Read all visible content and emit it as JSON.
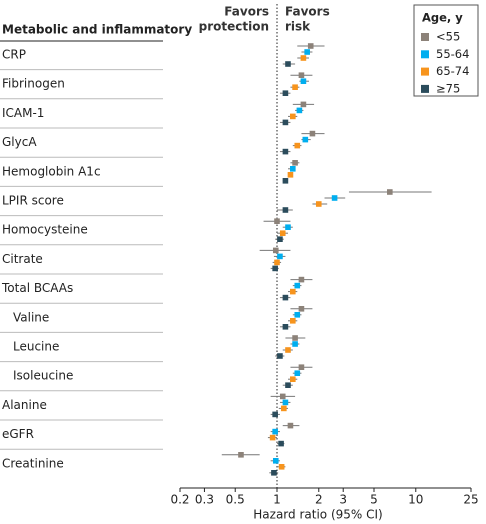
{
  "chart_data": {
    "type": "forest",
    "header": "Metabolic and inflammatory",
    "x_label": "Hazard ratio (95% CI)",
    "left_annotation": [
      "Favors",
      "protection"
    ],
    "right_annotation": [
      "Favors",
      "risk"
    ],
    "legend_title": "Age, y",
    "legend_position": "top-right",
    "xscale": "log",
    "xlim": [
      0.2,
      25
    ],
    "xticks": [
      0.2,
      0.3,
      0.5,
      1,
      2,
      3,
      5,
      10,
      25
    ],
    "reference": 1,
    "categories": [
      "CRP",
      "Fibrinogen",
      "ICAM-1",
      "GlycA",
      "Hemoglobin A1c",
      "LPIR score",
      "Homocysteine",
      "Citrate",
      "Total BCAAs",
      "Valine",
      "Leucine",
      "Isoleucine",
      "Alanine",
      "eGFR",
      "Creatinine"
    ],
    "indented": [
      9,
      10,
      11
    ],
    "series": [
      {
        "name": "<55",
        "color": "#8c8279",
        "values": [
          1.75,
          1.5,
          1.55,
          1.8,
          1.35,
          6.5,
          1.0,
          0.98,
          1.5,
          1.5,
          1.35,
          1.5,
          1.1,
          1.25,
          0.55
        ],
        "lower": [
          1.4,
          1.25,
          1.3,
          1.5,
          1.25,
          3.3,
          0.8,
          0.75,
          1.25,
          1.25,
          1.15,
          1.25,
          0.9,
          1.1,
          0.4
        ],
        "upper": [
          2.2,
          1.8,
          1.85,
          2.2,
          1.45,
          13,
          1.25,
          1.25,
          1.8,
          1.8,
          1.6,
          1.8,
          1.35,
          1.45,
          0.75
        ]
      },
      {
        "name": "55-64",
        "color": "#00aeef",
        "values": [
          1.65,
          1.55,
          1.45,
          1.6,
          1.3,
          2.6,
          1.2,
          1.05,
          1.4,
          1.4,
          1.35,
          1.4,
          1.15,
          0.97,
          0.98
        ],
        "lower": [
          1.5,
          1.45,
          1.35,
          1.5,
          1.2,
          2.2,
          1.1,
          0.95,
          1.3,
          1.3,
          1.25,
          1.3,
          1.05,
          0.9,
          0.9
        ],
        "upper": [
          1.8,
          1.7,
          1.55,
          1.75,
          1.35,
          3.1,
          1.3,
          1.15,
          1.5,
          1.5,
          1.45,
          1.5,
          1.25,
          1.05,
          1.05
        ]
      },
      {
        "name": "65-74",
        "color": "#f7941d",
        "values": [
          1.55,
          1.35,
          1.3,
          1.4,
          1.25,
          2.0,
          1.1,
          1.0,
          1.3,
          1.3,
          1.2,
          1.3,
          1.12,
          0.93,
          1.08
        ],
        "lower": [
          1.4,
          1.25,
          1.2,
          1.3,
          1.2,
          1.8,
          1.0,
          0.93,
          1.2,
          1.2,
          1.1,
          1.2,
          1.03,
          0.86,
          1.0
        ],
        "upper": [
          1.7,
          1.45,
          1.4,
          1.5,
          1.3,
          2.3,
          1.2,
          1.07,
          1.4,
          1.4,
          1.3,
          1.4,
          1.2,
          1.0,
          1.15
        ]
      },
      {
        "name": "≥75",
        "color": "#2b4c5c",
        "values": [
          1.2,
          1.15,
          1.15,
          1.15,
          1.15,
          1.15,
          1.05,
          0.97,
          1.15,
          1.15,
          1.05,
          1.2,
          0.97,
          1.07,
          0.95
        ],
        "lower": [
          1.1,
          1.05,
          1.05,
          1.05,
          1.1,
          1.0,
          0.97,
          0.9,
          1.05,
          1.05,
          0.97,
          1.1,
          0.9,
          1.0,
          0.88
        ],
        "upper": [
          1.35,
          1.25,
          1.25,
          1.25,
          1.2,
          1.3,
          1.12,
          1.03,
          1.25,
          1.25,
          1.13,
          1.3,
          1.05,
          1.13,
          1.02
        ]
      }
    ]
  }
}
